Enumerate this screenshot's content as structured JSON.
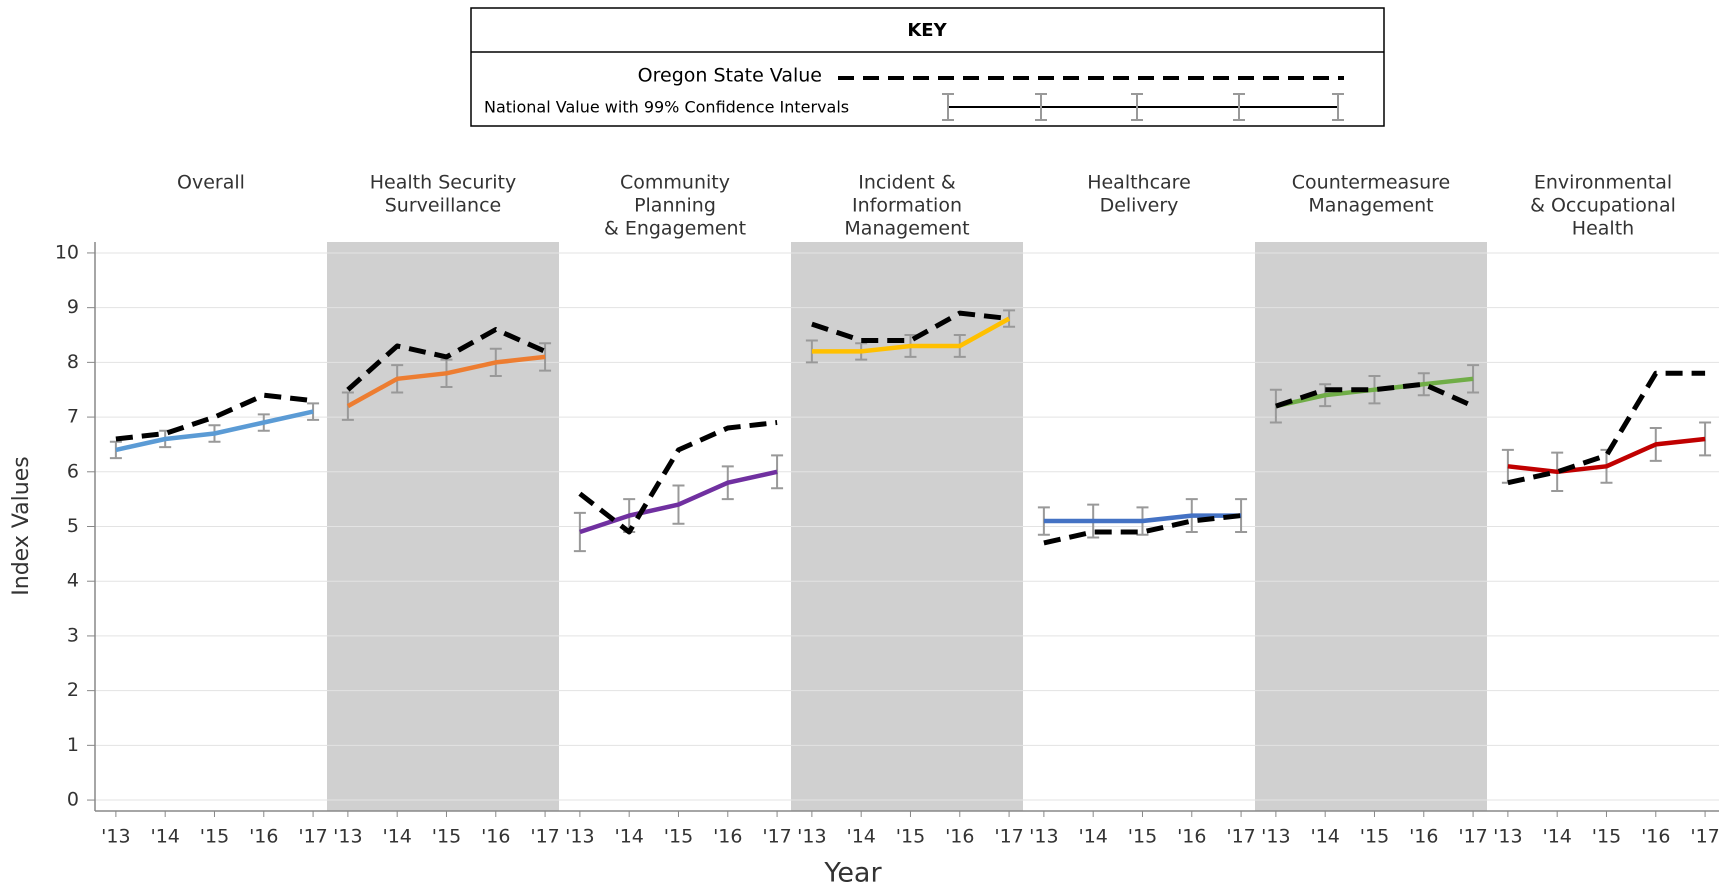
{
  "key": {
    "title": "KEY",
    "oregon": "Oregon State Value",
    "national": "National Value with 99% Confidence Intervals"
  },
  "shared": {
    "ylabel": "Index Values",
    "xlabel": "Year",
    "ylim": [
      -0.2,
      10.2
    ],
    "yticks": [
      0,
      1,
      2,
      3,
      4,
      5,
      6,
      7,
      8,
      9,
      10
    ],
    "grid": true,
    "shade_color": "#d0d0d0",
    "error_color": "#999999"
  },
  "chart_data": [
    {
      "type": "line",
      "title": [
        "Overall"
      ],
      "shaded": false,
      "categories": [
        "'13",
        "'14",
        "'15",
        "'16",
        "'17"
      ],
      "series": [
        {
          "style": "solid",
          "color": "#5b9bd5",
          "values": [
            6.4,
            6.6,
            6.7,
            6.9,
            7.1
          ],
          "errors": [
            0.15,
            0.15,
            0.15,
            0.15,
            0.15
          ]
        },
        {
          "style": "dashed",
          "color": "#000000",
          "values": [
            6.6,
            6.7,
            7.0,
            7.4,
            7.3
          ]
        }
      ]
    },
    {
      "type": "line",
      "title": [
        "Health Security",
        "Surveillance"
      ],
      "shaded": true,
      "categories": [
        "'13",
        "'14",
        "'15",
        "'16",
        "'17"
      ],
      "series": [
        {
          "style": "solid",
          "color": "#ed7d31",
          "values": [
            7.2,
            7.7,
            7.8,
            8.0,
            8.1
          ],
          "errors": [
            0.25,
            0.25,
            0.25,
            0.25,
            0.25
          ]
        },
        {
          "style": "dashed",
          "color": "#000000",
          "values": [
            7.5,
            8.3,
            8.1,
            8.6,
            8.2
          ]
        }
      ]
    },
    {
      "type": "line",
      "title": [
        "Community",
        "Planning",
        "& Engagement"
      ],
      "shaded": false,
      "categories": [
        "'13",
        "'14",
        "'15",
        "'16",
        "'17"
      ],
      "series": [
        {
          "style": "solid",
          "color": "#7030a0",
          "values": [
            4.9,
            5.2,
            5.4,
            5.8,
            6.0
          ],
          "errors": [
            0.35,
            0.3,
            0.35,
            0.3,
            0.3
          ]
        },
        {
          "style": "dashed",
          "color": "#000000",
          "values": [
            5.6,
            4.9,
            6.4,
            6.8,
            6.9
          ]
        }
      ]
    },
    {
      "type": "line",
      "title": [
        "Incident &",
        "Information",
        "Management"
      ],
      "shaded": true,
      "categories": [
        "'13",
        "'14",
        "'15",
        "'16",
        "'17"
      ],
      "series": [
        {
          "style": "solid",
          "color": "#ffc000",
          "values": [
            8.2,
            8.2,
            8.3,
            8.3,
            8.8
          ],
          "errors": [
            0.2,
            0.15,
            0.2,
            0.2,
            0.15
          ]
        },
        {
          "style": "dashed",
          "color": "#000000",
          "values": [
            8.7,
            8.4,
            8.4,
            8.9,
            8.8
          ]
        }
      ]
    },
    {
      "type": "line",
      "title": [
        "Healthcare",
        "Delivery"
      ],
      "shaded": false,
      "categories": [
        "'13",
        "'14",
        "'15",
        "'16",
        "'17"
      ],
      "series": [
        {
          "style": "solid",
          "color": "#4472c4",
          "values": [
            5.1,
            5.1,
            5.1,
            5.2,
            5.2
          ],
          "errors": [
            0.25,
            0.3,
            0.25,
            0.3,
            0.3
          ]
        },
        {
          "style": "dashed",
          "color": "#000000",
          "values": [
            4.7,
            4.9,
            4.9,
            5.1,
            5.2
          ]
        }
      ]
    },
    {
      "type": "line",
      "title": [
        "Countermeasure",
        "Management"
      ],
      "shaded": true,
      "categories": [
        "'13",
        "'14",
        "'15",
        "'16",
        "'17"
      ],
      "series": [
        {
          "style": "solid",
          "color": "#70ad47",
          "values": [
            7.2,
            7.4,
            7.5,
            7.6,
            7.7
          ],
          "errors": [
            0.3,
            0.2,
            0.25,
            0.2,
            0.25
          ]
        },
        {
          "style": "dashed",
          "color": "#000000",
          "values": [
            7.2,
            7.5,
            7.5,
            7.6,
            7.2
          ]
        }
      ]
    },
    {
      "type": "line",
      "title": [
        "Environmental",
        "& Occupational",
        "Health"
      ],
      "shaded": false,
      "categories": [
        "'13",
        "'14",
        "'15",
        "'16",
        "'17"
      ],
      "series": [
        {
          "style": "solid",
          "color": "#c00000",
          "values": [
            6.1,
            6.0,
            6.1,
            6.5,
            6.6
          ],
          "errors": [
            0.3,
            0.35,
            0.3,
            0.3,
            0.3
          ]
        },
        {
          "style": "dashed",
          "color": "#000000",
          "values": [
            5.8,
            6.0,
            6.3,
            7.8,
            7.8
          ]
        }
      ]
    }
  ]
}
